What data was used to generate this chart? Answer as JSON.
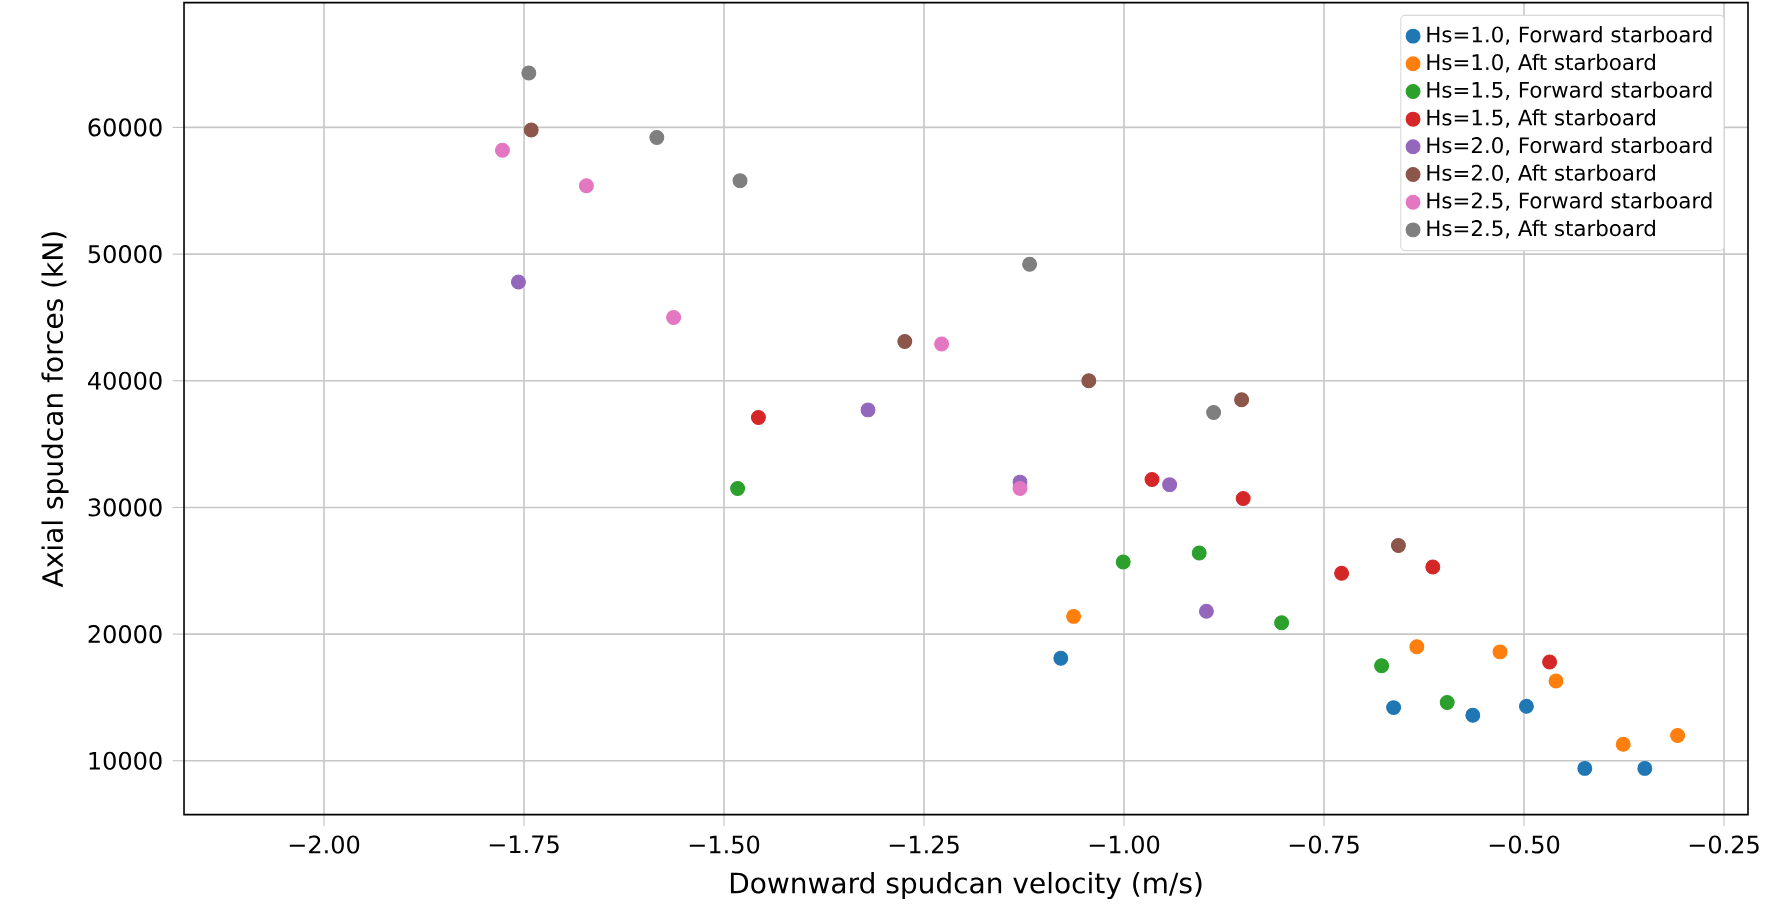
{
  "chart_data": {
    "type": "scatter",
    "xlabel": "Downward spudcan velocity (m/s)",
    "ylabel": "Axial spudcan forces (kN)",
    "xlim": [
      -2.175,
      -0.22
    ],
    "ylim": [
      5750,
      69850
    ],
    "xticks": [
      {
        "value": -2.0,
        "label": "−2.00"
      },
      {
        "value": -1.75,
        "label": "−1.75"
      },
      {
        "value": -1.5,
        "label": "−1.50"
      },
      {
        "value": -1.25,
        "label": "−1.25"
      },
      {
        "value": -1.0,
        "label": "−1.00"
      },
      {
        "value": -0.75,
        "label": "−0.75"
      },
      {
        "value": -0.5,
        "label": "−0.50"
      },
      {
        "value": -0.25,
        "label": "−0.25"
      }
    ],
    "yticks": [
      10000,
      20000,
      30000,
      40000,
      50000,
      60000
    ],
    "grid": true,
    "legend": "top right",
    "marker": "circle",
    "series": [
      {
        "name": "Hs=1.0, Forward starboard",
        "color": "#1f77b4",
        "x": [
          -1.079,
          -0.663,
          -0.564,
          -0.497,
          -0.424,
          -0.349
        ],
        "values": [
          18100,
          14200,
          13600,
          14300,
          9400,
          9400
        ]
      },
      {
        "name": "Hs=1.0, Aft starboard",
        "color": "#ff7f0e",
        "x": [
          -1.063,
          -0.634,
          -0.53,
          -0.46,
          -0.376,
          -0.308
        ],
        "values": [
          21400,
          19000,
          18600,
          16300,
          11300,
          12000
        ]
      },
      {
        "name": "Hs=1.5, Forward starboard",
        "color": "#2ca02c",
        "x": [
          -1.483,
          -1.001,
          -0.906,
          -0.803,
          -0.678,
          -0.596
        ],
        "values": [
          31500,
          25700,
          26400,
          20900,
          17500,
          14600
        ]
      },
      {
        "name": "Hs=1.5, Aft starboard",
        "color": "#d62728",
        "x": [
          -1.457,
          -0.965,
          -0.851,
          -0.728,
          -0.614,
          -0.468
        ],
        "values": [
          37100,
          32200,
          30700,
          24800,
          25300,
          17800
        ]
      },
      {
        "name": "Hs=2.0, Forward starboard",
        "color": "#9467bd",
        "x": [
          -1.757,
          -1.32,
          -1.13,
          -0.943,
          -0.897
        ],
        "values": [
          47800,
          37700,
          32000,
          31800,
          21800
        ]
      },
      {
        "name": "Hs=2.0, Aft starboard",
        "color": "#8c564b",
        "x": [
          -1.741,
          -1.274,
          -1.044,
          -0.853,
          -0.657
        ],
        "values": [
          59800,
          43100,
          40000,
          38500,
          27000
        ]
      },
      {
        "name": "Hs=2.5, Forward starboard",
        "color": "#e377c2",
        "x": [
          -1.777,
          -1.672,
          -1.563,
          -1.228,
          -1.13
        ],
        "values": [
          58200,
          55400,
          45000,
          42900,
          31500
        ]
      },
      {
        "name": "Hs=2.5, Aft starboard",
        "color": "#7f7f7f",
        "x": [
          -1.744,
          -1.584,
          -1.48,
          -1.118,
          -0.888
        ],
        "values": [
          64300,
          59200,
          55800,
          49200,
          37500
        ]
      }
    ]
  }
}
